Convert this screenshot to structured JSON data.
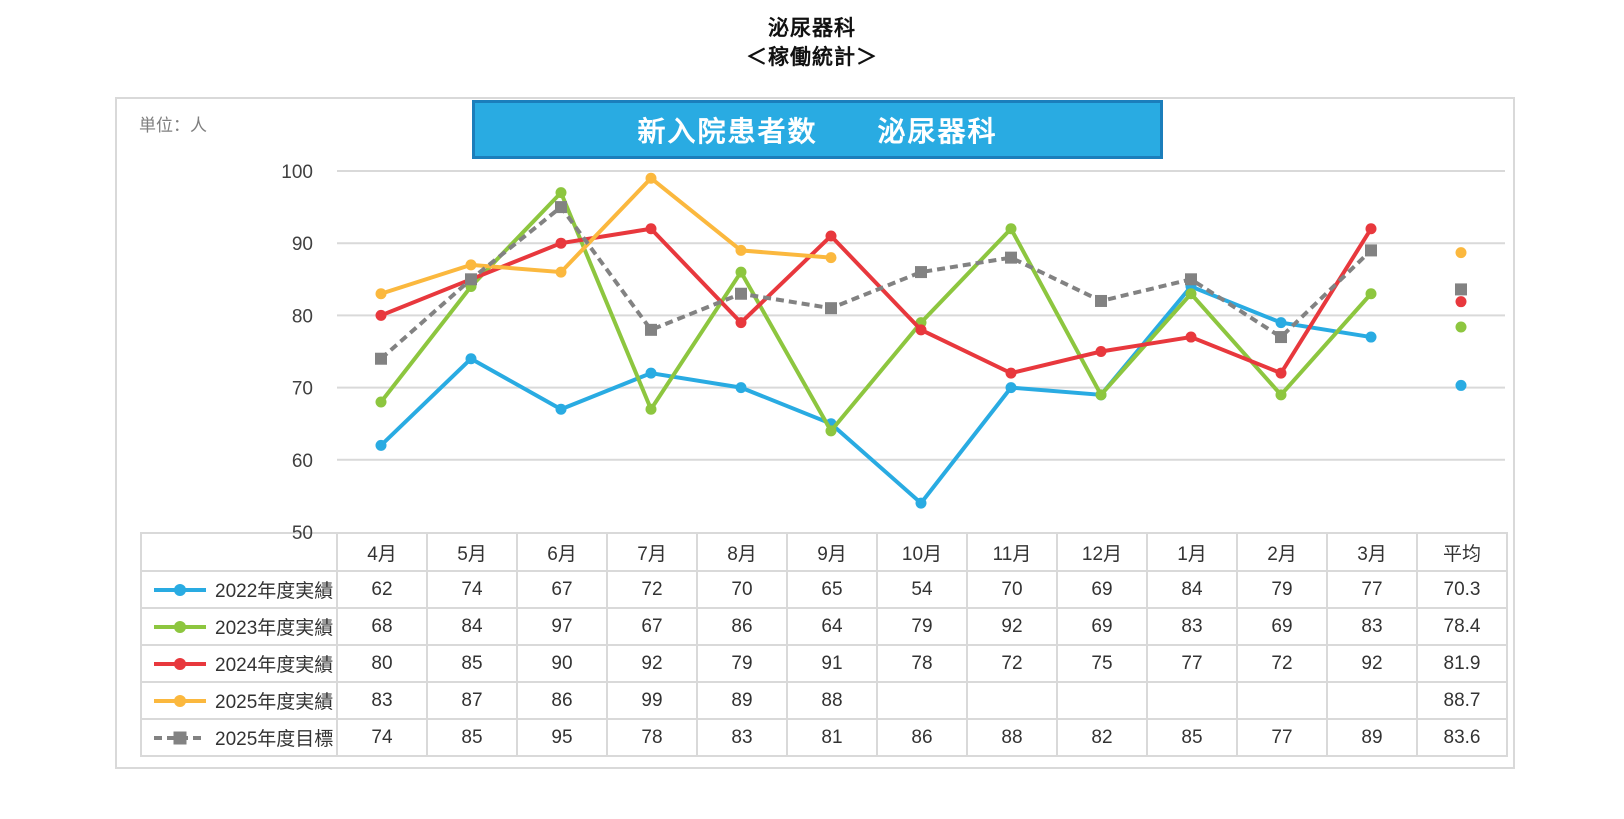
{
  "page": {
    "title_line1": "泌尿器科",
    "title_line2": "＜稼働統計＞",
    "unit_label": "単位：人",
    "banner_title": "新入院患者数　　泌尿器科"
  },
  "colors": {
    "banner_fill": "#29ABE2",
    "banner_border": "#1B7EBB",
    "grid": "#D9D9D9",
    "table_border": "#D9D9D9",
    "axis_text": "#404040",
    "cell_text": "#333333",
    "unit_text": "#7F7F7F"
  },
  "chart_data": {
    "type": "line",
    "title": "新入院患者数　泌尿器科",
    "unit": "人",
    "categories": [
      "4月",
      "5月",
      "6月",
      "7月",
      "8月",
      "9月",
      "10月",
      "11月",
      "12月",
      "1月",
      "2月",
      "3月"
    ],
    "average_label": "平均",
    "ylim": [
      50,
      100
    ],
    "yticks": [
      50,
      60,
      70,
      80,
      90,
      100
    ],
    "grid": true,
    "legend_position": "table-left",
    "series": [
      {
        "name": "2022年度実績",
        "color": "#29ABE2",
        "marker": "circle",
        "dashed": false,
        "values": [
          62,
          74,
          67,
          72,
          70,
          65,
          54,
          70,
          69,
          84,
          79,
          77
        ],
        "average": 70.3
      },
      {
        "name": "2023年度実績",
        "color": "#8DC63F",
        "marker": "circle",
        "dashed": false,
        "values": [
          68,
          84,
          97,
          67,
          86,
          64,
          79,
          92,
          69,
          83,
          69,
          83
        ],
        "average": 78.4
      },
      {
        "name": "2024年度実績",
        "color": "#E8383D",
        "marker": "circle",
        "dashed": false,
        "values": [
          80,
          85,
          90,
          92,
          79,
          91,
          78,
          72,
          75,
          77,
          72,
          92
        ],
        "average": 81.9
      },
      {
        "name": "2025年度実績",
        "color": "#FBB83E",
        "marker": "circle",
        "dashed": false,
        "values": [
          83,
          87,
          86,
          99,
          89,
          88,
          null,
          null,
          null,
          null,
          null,
          null
        ],
        "average": 88.7
      },
      {
        "name": "2025年度目標",
        "color": "#828282",
        "marker": "square",
        "dashed": true,
        "values": [
          74,
          85,
          95,
          78,
          83,
          81,
          86,
          88,
          82,
          85,
          77,
          89
        ],
        "average": 83.6
      }
    ]
  }
}
